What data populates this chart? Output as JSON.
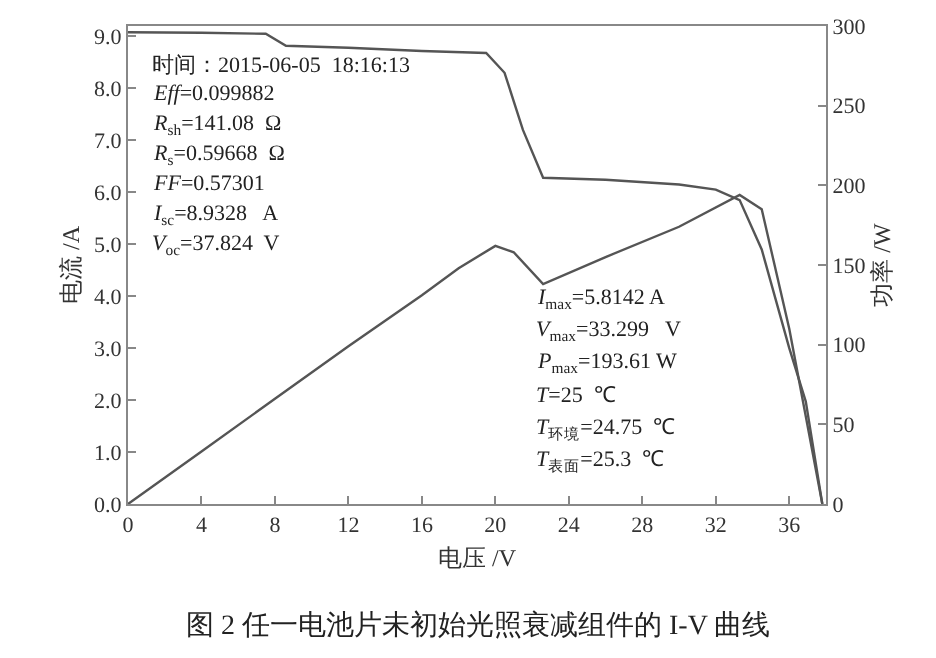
{
  "chart_data": {
    "type": "line",
    "title": "图 2 任一电池片未初始光照衰减组件的 I-V 曲线",
    "xlabel": "电压 /V",
    "ylabel": "电流 /A",
    "y2label": "功率 /W",
    "xlim": [
      0,
      38
    ],
    "xticks": [
      0,
      4,
      8,
      12,
      16,
      20,
      24,
      28,
      32,
      36
    ],
    "ylim": [
      0,
      9.2
    ],
    "yticks": [
      {
        "value": 0,
        "label": "0.0"
      },
      {
        "value": 1,
        "label": "1.0"
      },
      {
        "value": 2,
        "label": "2.0"
      },
      {
        "value": 3,
        "label": "3.0"
      },
      {
        "value": 4,
        "label": "4.0"
      },
      {
        "value": 5,
        "label": "5.0"
      },
      {
        "value": 6,
        "label": "6.0"
      },
      {
        "value": 7,
        "label": "7.0"
      },
      {
        "value": 8,
        "label": "8.0"
      },
      {
        "value": 9,
        "label": "9.0"
      }
    ],
    "y2lim": [
      0,
      300
    ],
    "y2ticks": [
      0,
      50,
      100,
      150,
      200,
      250,
      300
    ],
    "series": [
      {
        "color": "#555555",
        "x": [
          0,
          4,
          7.5,
          8.6,
          12,
          16,
          19.5,
          20.5,
          21.5,
          22.6,
          26,
          30,
          32,
          33.3,
          34.5,
          36,
          36.9,
          37.8
        ],
        "values": [
          9.08,
          9.07,
          9.05,
          8.82,
          8.78,
          8.72,
          8.68,
          8.3,
          7.2,
          6.28,
          6.24,
          6.15,
          6.05,
          5.85,
          4.9,
          3.0,
          1.97,
          0
        ]
      },
      {
        "color": "#555555",
        "axis": "y2",
        "x": [
          0,
          4,
          8,
          12,
          16,
          18,
          20,
          21,
          22.6,
          26,
          30,
          33.3,
          34.5,
          36,
          37.8
        ],
        "values": [
          0,
          33,
          66,
          99,
          131,
          148,
          162,
          158,
          138,
          155,
          174,
          194,
          185,
          110,
          0
        ]
      }
    ],
    "annotations": [
      "时间：2015-06-05  18:16:13",
      "Eff=0.099882",
      "R$_{sh}$=141.08  Ω",
      "R$_{s}$=0.59668  Ω",
      "FF=0.57301",
      "I$_{sc}$=8.9328   A",
      "V$_{oc}$=37.824  V",
      "I$_{max}$=5.8142 A",
      "V$_{max}$=33.299   V",
      "P$_{max}$=193.61 W",
      "T=25  ℃",
      "T$_{环境}$=24.75  ℃",
      "T$_{表面}$=25.3  ℃"
    ]
  }
}
